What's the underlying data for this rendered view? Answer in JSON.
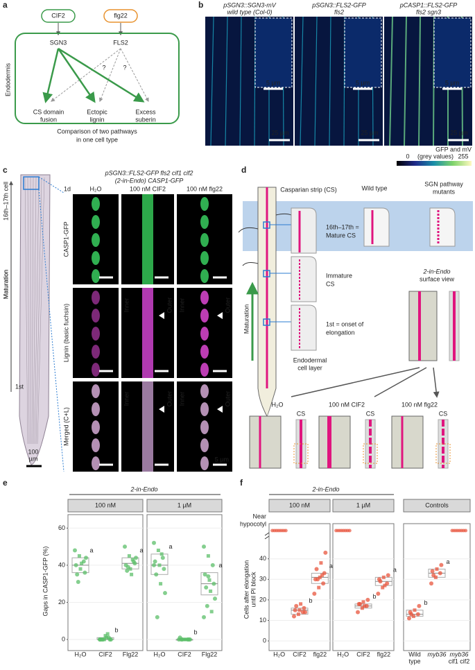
{
  "panel_a": {
    "letter": "a",
    "inputs": [
      "CIF2",
      "flg22"
    ],
    "receptors": [
      "SGN3",
      "FLS2"
    ],
    "tissue": "Endodermis",
    "unknown": [
      "?",
      "?"
    ],
    "outputs": [
      [
        "CS domain",
        "fusion"
      ],
      [
        "Ectopic",
        "lignin"
      ],
      [
        "Excess",
        "suberin"
      ]
    ],
    "caption": [
      "Comparison of two pathways",
      "in one cell type"
    ]
  },
  "panel_b": {
    "letter": "b",
    "columns": [
      [
        "pSGN3::SGN3-mV",
        "wild type (Col-0)"
      ],
      [
        "pSGN3::FLS2-GFP",
        "fls2"
      ],
      [
        "pCASP1::FLS2-GFP",
        "fls2 sgn3"
      ]
    ],
    "inset_scale": "5 µm",
    "main_scale": "25 µm",
    "colorbar": {
      "title": "GFP and mV",
      "min": 0,
      "unit": "(grey values)",
      "max": 255
    }
  },
  "panel_c": {
    "letter": "c",
    "title": [
      "pSGN3::FLS2-GFP fls2 cif1 cif2",
      "(2-in-Endo) CASP1-GFP"
    ],
    "timepoint": "1d",
    "columns": [
      "H₂O",
      "100 nM CIF2",
      "100 nM flg22"
    ],
    "rows": [
      "CASP1-GFP",
      "Lignin (basic fuchsin)",
      "Merged (C+L)"
    ],
    "sides": [
      "Inner",
      "Outer"
    ],
    "root_labels": [
      "16th–17th cell",
      "Maturation",
      "1st"
    ],
    "root_scale": [
      "100",
      "µm"
    ],
    "image_scale": "5 µm"
  },
  "panel_d": {
    "letter": "d",
    "cs_label": "Casparian strip (CS)",
    "wild_type": "Wild type",
    "mutants": [
      "SGN pathway",
      "mutants"
    ],
    "stages": [
      [
        "16th–17th =",
        "Mature CS"
      ],
      [
        "Immature",
        "CS"
      ],
      [
        "1st = onset of",
        "elongation"
      ]
    ],
    "cell_layer": [
      "Endodermal",
      "cell layer"
    ],
    "axis": "Maturation",
    "view": [
      "2-in-Endo",
      "surface view"
    ],
    "treatments": [
      "H₂O",
      "100 nM CIF2",
      "100 nM flg22"
    ],
    "cs": "CS"
  },
  "panel_e": {
    "letter": "e",
    "title": "2-in-Endo",
    "ylabel": "Gaps in CASP1-GFP (%)",
    "ylim": [
      -3,
      65
    ],
    "yticks": [
      0,
      20,
      40,
      60
    ],
    "facets": [
      {
        "label": "100 nM",
        "groups": [
          {
            "name": "H₂O",
            "letter": "a",
            "box": [
              36,
              40,
              44
            ],
            "values": [
              48,
              45,
              42,
              40,
              38,
              36,
              35,
              41,
              44,
              31
            ]
          },
          {
            "name": "CIF2",
            "letter": "b",
            "box": [
              0,
              0,
              1
            ],
            "values": [
              0,
              0,
              1,
              0,
              2,
              0,
              0,
              1,
              0,
              0,
              3,
              0
            ]
          },
          {
            "name": "Flg22",
            "letter": "a",
            "box": [
              38,
              41,
              44
            ],
            "values": [
              50,
              45,
              42,
              40,
              38,
              41,
              37,
              35,
              44,
              39,
              43
            ]
          }
        ]
      },
      {
        "label": "1 µM",
        "groups": [
          {
            "name": "H₂O",
            "letter": "a",
            "box": [
              35,
              40,
              46
            ],
            "values": [
              52,
              48,
              44,
              42,
              40,
              38,
              35,
              30,
              25,
              12,
              46,
              40
            ]
          },
          {
            "name": "CIF2",
            "letter": "b",
            "box": [
              0,
              0,
              0
            ],
            "values": [
              0,
              0,
              0,
              1,
              0,
              0,
              0,
              0,
              0,
              0,
              0
            ]
          },
          {
            "name": "Flg22",
            "letter": "a",
            "box": [
              24,
              30,
              36
            ],
            "values": [
              50,
              45,
              40,
              35,
              32,
              30,
              28,
              26,
              22,
              18,
              15,
              12,
              34
            ]
          }
        ]
      }
    ]
  },
  "panel_f": {
    "letter": "f",
    "title": "2-in-Endo",
    "ylabel": [
      "Cells after elongation",
      "until PI block"
    ],
    "top_label": [
      "Near",
      "hypocotyl"
    ],
    "ylim": [
      -2,
      47
    ],
    "yticks": [
      0,
      10,
      20,
      30,
      40
    ],
    "facets": [
      {
        "label": "100 nM",
        "groups": [
          {
            "name": [
              "H₂O"
            ],
            "letter": null,
            "near_hypocotyl": true,
            "values": []
          },
          {
            "name": [
              "CIF2"
            ],
            "letter": "b",
            "near_hypocotyl": false,
            "box": [
              13,
              15,
              16
            ],
            "values": [
              12,
              13,
              14,
              15,
              15,
              16,
              17,
              18,
              14
            ]
          },
          {
            "name": [
              "flg22"
            ],
            "letter": "a",
            "near_hypocotyl": false,
            "box": [
              28,
              31,
              33
            ],
            "values": [
              23,
              26,
              28,
              30,
              31,
              33,
              35,
              38,
              43,
              30,
              32
            ]
          }
        ]
      },
      {
        "label": "1 µM",
        "groups": [
          {
            "name": [
              "H₂O"
            ],
            "letter": null,
            "near_hypocotyl": true,
            "values": []
          },
          {
            "name": [
              "CIF2"
            ],
            "letter": "b",
            "near_hypocotyl": false,
            "box": [
              16,
              17,
              18
            ],
            "values": [
              14,
              16,
              17,
              18,
              19,
              20,
              18,
              17
            ]
          },
          {
            "name": [
              "flg22"
            ],
            "letter": "a",
            "near_hypocotyl": false,
            "box": [
              27,
              29,
              31
            ],
            "values": [
              23,
              26,
              28,
              30,
              31,
              32,
              29,
              27
            ]
          }
        ]
      },
      {
        "label": "Controls",
        "groups": [
          {
            "name": [
              "Wild",
              "type"
            ],
            "letter": "b",
            "near_hypocotyl": false,
            "box": [
              12,
              13,
              15
            ],
            "values": [
              11,
              12,
              13,
              14,
              15,
              17,
              13
            ]
          },
          {
            "name": [
              "myb36"
            ],
            "letter": "a",
            "near_hypocotyl": false,
            "box": [
              31,
              33,
              35
            ],
            "values": [
              28,
              31,
              33,
              34,
              35,
              37,
              32
            ]
          },
          {
            "name": [
              "myb36",
              "cif1 cif2"
            ],
            "letter": null,
            "near_hypocotyl": true,
            "values": []
          }
        ]
      }
    ]
  }
}
